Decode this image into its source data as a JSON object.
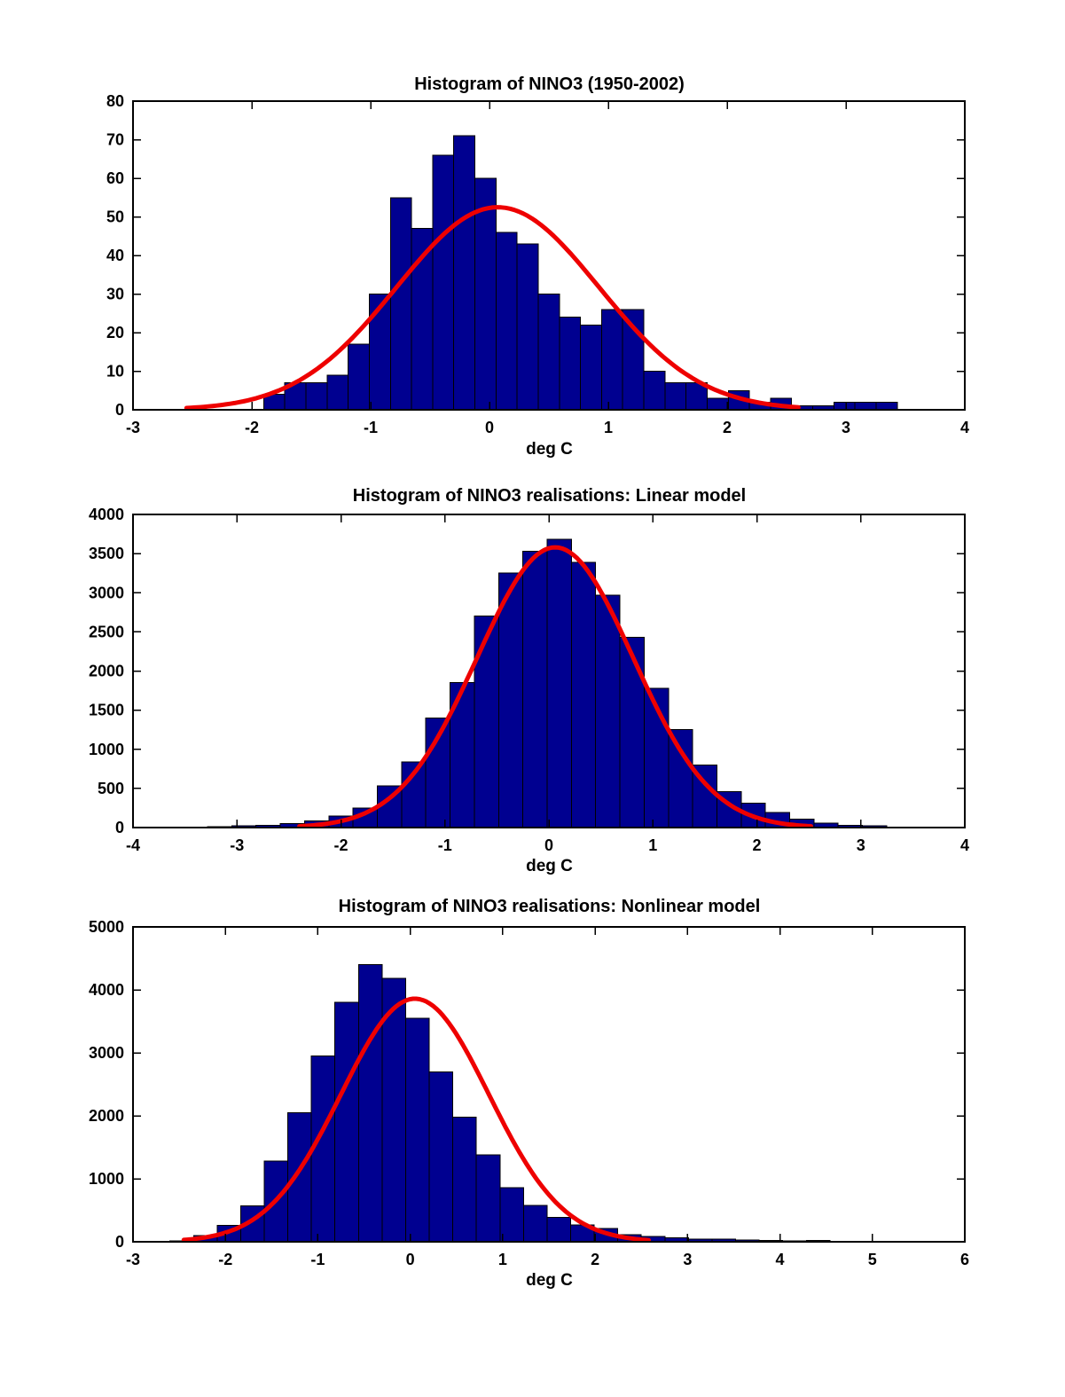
{
  "figure": {
    "background": "#ffffff"
  },
  "colors": {
    "bar_fill": "#000090",
    "bar_edge": "#000000",
    "fit_curve": "#ee0000",
    "axis": "#000000",
    "text": "#000000"
  },
  "chart_data": [
    {
      "type": "bar",
      "title": "Histogram of NINO3 (1950-2002)",
      "xlabel": "deg C",
      "xlim": [
        -3,
        4
      ],
      "ylim": [
        0,
        80
      ],
      "xticks": [
        -3,
        -2,
        -1,
        0,
        1,
        2,
        3,
        4
      ],
      "yticks": [
        0,
        10,
        20,
        30,
        40,
        50,
        60,
        70,
        80
      ],
      "grid": false,
      "legend": null,
      "bars": {
        "bin_start": -1.9,
        "bin_width": 0.1777,
        "counts": [
          4,
          7,
          7,
          9,
          17,
          30,
          55,
          47,
          66,
          71,
          60,
          46,
          43,
          30,
          24,
          22,
          26,
          26,
          10,
          7,
          7,
          3,
          5,
          2,
          3,
          1,
          1,
          2,
          2,
          2
        ]
      },
      "fit_curve": {
        "shape": "gaussian",
        "amplitude": 52.5,
        "mean": 0.07,
        "sigma": 0.85,
        "x_start": -2.55,
        "x_end": 2.6
      }
    },
    {
      "type": "bar",
      "title": "Histogram of NINO3 realisations: Linear model",
      "xlabel": "deg C",
      "xlim": [
        -4,
        4
      ],
      "ylim": [
        0,
        4000
      ],
      "xticks": [
        -4,
        -3,
        -2,
        -1,
        0,
        1,
        2,
        3,
        4
      ],
      "yticks": [
        0,
        500,
        1000,
        1500,
        2000,
        2500,
        3000,
        3500,
        4000
      ],
      "grid": false,
      "legend": null,
      "bars": {
        "bin_start": -3.75,
        "bin_width": 0.2333,
        "counts": [
          8,
          8,
          10,
          20,
          30,
          50,
          85,
          150,
          250,
          530,
          840,
          1400,
          1850,
          2700,
          3250,
          3530,
          3680,
          3390,
          2970,
          2430,
          1780,
          1250,
          800,
          460,
          310,
          195,
          110,
          55,
          30,
          20
        ]
      },
      "fit_curve": {
        "shape": "gaussian",
        "amplitude": 3580,
        "mean": 0.06,
        "sigma": 0.75,
        "x_start": -2.4,
        "x_end": 2.52
      }
    },
    {
      "type": "bar",
      "title": "Histogram of NINO3 realisations: Nonlinear model",
      "xlabel": "deg C",
      "xlim": [
        -3,
        6
      ],
      "ylim": [
        0,
        5000
      ],
      "xticks": [
        -3,
        -2,
        -1,
        0,
        1,
        2,
        3,
        4,
        5,
        6
      ],
      "yticks": [
        0,
        1000,
        2000,
        3000,
        4000,
        5000
      ],
      "grid": false,
      "legend": null,
      "bars": {
        "bin_start": -2.6,
        "bin_width": 0.255,
        "counts": [
          15,
          100,
          260,
          570,
          1280,
          2050,
          2950,
          3800,
          4400,
          4180,
          3550,
          2700,
          1980,
          1380,
          860,
          580,
          390,
          270,
          210,
          110,
          85,
          65,
          45,
          40,
          25,
          20,
          15,
          20,
          10,
          8
        ]
      },
      "fit_curve": {
        "shape": "gaussian",
        "amplitude": 3860,
        "mean": 0.05,
        "sigma": 0.8,
        "x_start": -2.45,
        "x_end": 2.58
      }
    }
  ]
}
